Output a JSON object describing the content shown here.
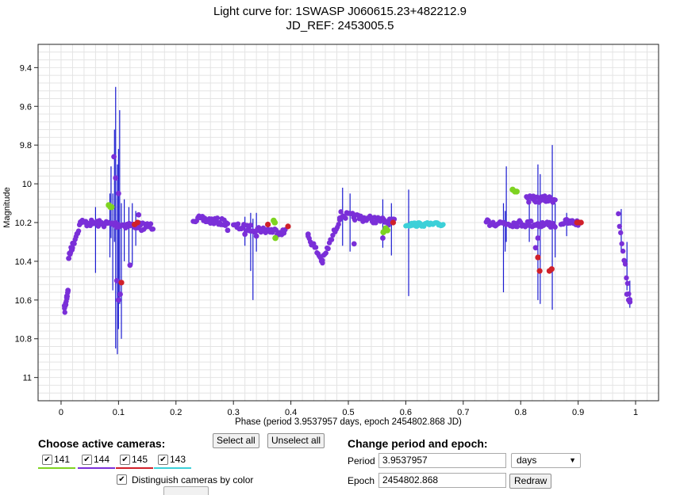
{
  "title_line1": "Light curve for: 1SWASP J060615.23+482212.9",
  "title_line2": "JD_REF: 2453005.5",
  "colors": {
    "cam141": "#7ed321",
    "cam144": "#7a2fd8",
    "cam145": "#d0202a",
    "cam143": "#3cd0d8",
    "errorbar": "#1a1ad0",
    "grid": "#e4e4e4"
  },
  "chart_data": {
    "type": "scatter",
    "xlabel": "Phase (period 3.9537957 days, epoch 2454802.868 JD)",
    "ylabel": "Magnitude",
    "xlim": [
      -0.04,
      1.04
    ],
    "ylim": [
      11.12,
      9.28
    ],
    "y_inverted": true,
    "grid": true,
    "xticks": [
      0,
      0.1,
      0.2,
      0.3,
      0.4,
      0.5,
      0.6,
      0.7,
      0.8,
      0.9,
      1
    ],
    "xtick_labels": [
      "0",
      "0.1",
      "0.2",
      "0.3",
      "0.4",
      "0.5",
      "0.6",
      "0.7",
      "0.8",
      "0.9",
      "1"
    ],
    "yticks": [
      9.4,
      9.6,
      9.8,
      10,
      10.2,
      10.4,
      10.6,
      10.8,
      11
    ],
    "ytick_labels": [
      "9.4",
      "9.6",
      "9.8",
      "10",
      "10.2",
      "10.4",
      "10.6",
      "10.8",
      "11"
    ],
    "segments_144": [
      {
        "x": [
          0.006,
          0.012
        ],
        "y": [
          10.66,
          10.55
        ]
      },
      {
        "x": [
          0.013,
          0.02
        ],
        "y": [
          10.38,
          10.32
        ]
      },
      {
        "x": [
          0.02,
          0.035
        ],
        "y": [
          10.32,
          10.19
        ]
      },
      {
        "x": [
          0.035,
          0.16
        ],
        "y": [
          10.2,
          10.22
        ]
      },
      {
        "x": [
          0.23,
          0.29
        ],
        "y": [
          10.18,
          10.2
        ]
      },
      {
        "x": [
          0.3,
          0.39
        ],
        "y": [
          10.22,
          10.25
        ]
      },
      {
        "x": [
          0.43,
          0.455
        ],
        "y": [
          10.27,
          10.4
        ]
      },
      {
        "x": [
          0.455,
          0.485
        ],
        "y": [
          10.4,
          10.18
        ]
      },
      {
        "x": [
          0.485,
          0.58
        ],
        "y": [
          10.16,
          10.2
        ]
      },
      {
        "x": [
          0.74,
          0.86
        ],
        "y": [
          10.2,
          10.21
        ]
      },
      {
        "x": [
          0.81,
          0.86
        ],
        "y": [
          10.08,
          10.08
        ]
      },
      {
        "x": [
          0.87,
          0.9
        ],
        "y": [
          10.2,
          10.2
        ]
      },
      {
        "x": [
          0.97,
          0.99
        ],
        "y": [
          10.17,
          10.6
        ]
      }
    ],
    "segments_143": [
      {
        "x": [
          0.6,
          0.665
        ],
        "y": [
          10.21,
          10.21
        ]
      }
    ],
    "points_141": [
      {
        "x": 0.083,
        "y": 10.11
      },
      {
        "x": 0.086,
        "y": 10.12
      },
      {
        "x": 0.088,
        "y": 10.12
      },
      {
        "x": 0.37,
        "y": 10.19
      },
      {
        "x": 0.372,
        "y": 10.2
      },
      {
        "x": 0.373,
        "y": 10.28
      },
      {
        "x": 0.561,
        "y": 10.25
      },
      {
        "x": 0.565,
        "y": 10.23
      },
      {
        "x": 0.568,
        "y": 10.24
      },
      {
        "x": 0.786,
        "y": 10.03
      },
      {
        "x": 0.79,
        "y": 10.04
      },
      {
        "x": 0.793,
        "y": 10.04
      }
    ],
    "points_145": [
      {
        "x": 0.128,
        "y": 10.21
      },
      {
        "x": 0.133,
        "y": 10.2
      },
      {
        "x": 0.105,
        "y": 10.51
      },
      {
        "x": 0.36,
        "y": 10.21
      },
      {
        "x": 0.395,
        "y": 10.22
      },
      {
        "x": 0.578,
        "y": 10.2
      },
      {
        "x": 0.83,
        "y": 10.38
      },
      {
        "x": 0.833,
        "y": 10.45
      },
      {
        "x": 0.85,
        "y": 10.45
      },
      {
        "x": 0.854,
        "y": 10.44
      },
      {
        "x": 0.898,
        "y": 10.2
      },
      {
        "x": 0.902,
        "y": 10.2
      },
      {
        "x": 0.905,
        "y": 10.2
      }
    ],
    "points_144_extra": [
      {
        "x": 0.006,
        "y": 10.63
      },
      {
        "x": 0.01,
        "y": 10.58
      },
      {
        "x": 0.012,
        "y": 10.55
      },
      {
        "x": 0.092,
        "y": 9.86
      },
      {
        "x": 0.095,
        "y": 9.97
      },
      {
        "x": 0.1,
        "y": 10.05
      },
      {
        "x": 0.097,
        "y": 10.5
      },
      {
        "x": 0.1,
        "y": 10.6
      },
      {
        "x": 0.103,
        "y": 10.57
      },
      {
        "x": 0.12,
        "y": 10.42
      },
      {
        "x": 0.135,
        "y": 10.16
      },
      {
        "x": 0.14,
        "y": 10.24
      },
      {
        "x": 0.29,
        "y": 10.24
      },
      {
        "x": 0.32,
        "y": 10.26
      },
      {
        "x": 0.34,
        "y": 10.27
      },
      {
        "x": 0.43,
        "y": 10.26
      },
      {
        "x": 0.51,
        "y": 10.31
      },
      {
        "x": 0.56,
        "y": 10.28
      },
      {
        "x": 0.77,
        "y": 10.2
      },
      {
        "x": 0.83,
        "y": 10.28
      },
      {
        "x": 0.826,
        "y": 10.33
      },
      {
        "x": 0.985,
        "y": 10.57
      },
      {
        "x": 0.988,
        "y": 10.6
      },
      {
        "x": 0.99,
        "y": 10.61
      }
    ],
    "errorbars": [
      {
        "x": 0.06,
        "lo": 10.12,
        "hi": 10.46
      },
      {
        "x": 0.087,
        "lo": 9.91,
        "hi": 10.28
      },
      {
        "x": 0.09,
        "lo": 10.05,
        "hi": 10.55
      },
      {
        "x": 0.093,
        "lo": 9.72,
        "hi": 10.3
      },
      {
        "x": 0.095,
        "lo": 9.5,
        "hi": 10.85
      },
      {
        "x": 0.098,
        "lo": 9.9,
        "hi": 10.88
      },
      {
        "x": 0.1,
        "lo": 9.82,
        "hi": 10.75
      },
      {
        "x": 0.102,
        "lo": 9.62,
        "hi": 10.62
      },
      {
        "x": 0.105,
        "lo": 10.1,
        "hi": 10.8
      },
      {
        "x": 0.11,
        "lo": 10.08,
        "hi": 10.4
      },
      {
        "x": 0.118,
        "lo": 10.12,
        "hi": 10.42
      },
      {
        "x": 0.124,
        "lo": 10.1,
        "hi": 10.42
      },
      {
        "x": 0.13,
        "lo": 10.14,
        "hi": 10.32
      },
      {
        "x": 0.085,
        "lo": 10.05,
        "hi": 10.38
      },
      {
        "x": 0.33,
        "lo": 10.15,
        "hi": 10.45
      },
      {
        "x": 0.334,
        "lo": 10.18,
        "hi": 10.6
      },
      {
        "x": 0.34,
        "lo": 10.15,
        "hi": 10.35
      },
      {
        "x": 0.32,
        "lo": 10.17,
        "hi": 10.32
      },
      {
        "x": 0.49,
        "lo": 10.02,
        "hi": 10.32
      },
      {
        "x": 0.503,
        "lo": 10.05,
        "hi": 10.35
      },
      {
        "x": 0.56,
        "lo": 10.08,
        "hi": 10.33
      },
      {
        "x": 0.575,
        "lo": 10.1,
        "hi": 10.37
      },
      {
        "x": 0.605,
        "lo": 10.03,
        "hi": 10.58
      },
      {
        "x": 0.77,
        "lo": 10.1,
        "hi": 10.56
      },
      {
        "x": 0.773,
        "lo": 10.14,
        "hi": 10.35
      },
      {
        "x": 0.775,
        "lo": 9.91,
        "hi": 10.3
      },
      {
        "x": 0.815,
        "lo": 10.08,
        "hi": 10.3
      },
      {
        "x": 0.83,
        "lo": 9.9,
        "hi": 10.6
      },
      {
        "x": 0.834,
        "lo": 9.95,
        "hi": 10.62
      },
      {
        "x": 0.855,
        "lo": 9.8,
        "hi": 10.65
      },
      {
        "x": 0.86,
        "lo": 10.1,
        "hi": 10.38
      },
      {
        "x": 0.88,
        "lo": 10.15,
        "hi": 10.27
      },
      {
        "x": 0.975,
        "lo": 10.13,
        "hi": 10.35
      },
      {
        "x": 0.985,
        "lo": 10.3,
        "hi": 10.55
      },
      {
        "x": 0.99,
        "lo": 10.5,
        "hi": 10.64
      }
    ]
  },
  "cameras": {
    "title": "Choose active cameras:",
    "select_all": "Select all",
    "unselect_all": "Unselect all",
    "items": [
      {
        "label": "141",
        "checked": true,
        "color": "#7ed321"
      },
      {
        "label": "144",
        "checked": true,
        "color": "#7a2fd8"
      },
      {
        "label": "145",
        "checked": true,
        "color": "#d0202a"
      },
      {
        "label": "143",
        "checked": true,
        "color": "#3cd0d8"
      }
    ],
    "distinguish_label": "Distinguish cameras by color",
    "check_mark": "✔"
  },
  "period_epoch": {
    "title": "Change period and epoch:",
    "period_label": "Period",
    "period_value": "3.9537957",
    "units_value": "days",
    "units_arrow": "▼",
    "epoch_label": "Epoch",
    "epoch_value": "2454802.868",
    "redraw_label": "Redraw"
  }
}
